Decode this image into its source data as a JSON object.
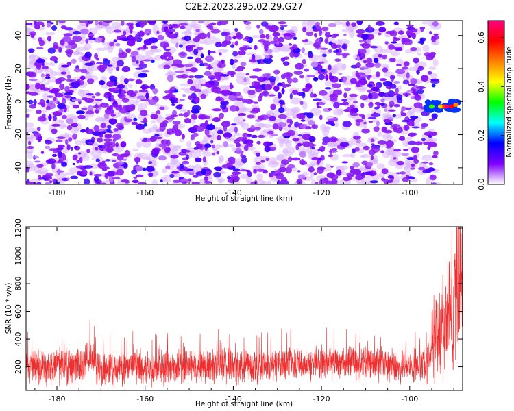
{
  "title": "C2E2.2023.295.02.29.G27",
  "chart_data": [
    {
      "type": "heatmap",
      "xlabel": "Height of straight line (km)",
      "ylabel": "Frequency (Hz)",
      "xlim": [
        -187,
        -88
      ],
      "ylim": [
        -50,
        49
      ],
      "xticks": [
        -180,
        -160,
        -140,
        -120,
        -100
      ],
      "yticks": [
        -40,
        -20,
        0,
        20,
        40
      ],
      "colorbar": {
        "label": "Normalized spectral amplitude",
        "range": [
          0,
          0.67
        ],
        "ticks": [
          0.0,
          0.2,
          0.4,
          0.6
        ],
        "colors": [
          "#ffffff",
          "#8000ff",
          "#0000ff",
          "#00ffff",
          "#00ff00",
          "#ffff00",
          "#ff8000",
          "#ff0000",
          "#ff0080"
        ]
      },
      "background_amplitude_range": [
        0.0,
        0.12
      ],
      "signal": {
        "x_range": [
          -96,
          -89
        ],
        "frequency_range": [
          -6,
          0
        ],
        "peak_amplitude": 0.67
      },
      "grid": false
    },
    {
      "type": "line",
      "xlabel": "Height of straight line (km)",
      "ylabel": "SNR (10 * v/v)",
      "xlim": [
        -187,
        -88
      ],
      "ylim": [
        30,
        1210
      ],
      "xticks": [
        -180,
        -160,
        -140,
        -120,
        -100
      ],
      "yticks": [
        200,
        400,
        600,
        800,
        1000,
        1200
      ],
      "color": "#f03030",
      "series": [
        {
          "x": [
            -187,
            -183,
            -180,
            -177,
            -174,
            -173,
            -171,
            -168,
            -165,
            -162,
            -160,
            -157,
            -154,
            -151,
            -148,
            -145,
            -142,
            -140,
            -137,
            -134,
            -131,
            -128,
            -125,
            -122,
            -120,
            -117,
            -114,
            -111,
            -108,
            -105,
            -102,
            -100,
            -98,
            -96,
            -95,
            -94,
            -93,
            -92,
            -91,
            -90,
            -89,
            -88
          ],
          "y": [
            200,
            190,
            210,
            195,
            230,
            300,
            200,
            185,
            195,
            205,
            190,
            200,
            195,
            210,
            200,
            205,
            215,
            200,
            205,
            210,
            215,
            225,
            220,
            230,
            225,
            240,
            235,
            225,
            215,
            220,
            205,
            200,
            215,
            210,
            380,
            420,
            450,
            520,
            610,
            700,
            820,
            1000
          ]
        }
      ],
      "grid": false
    }
  ]
}
